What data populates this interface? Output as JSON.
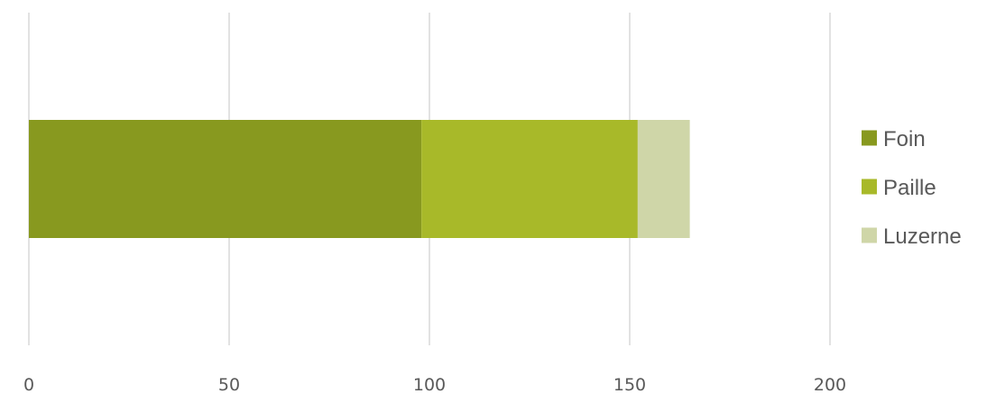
{
  "chart_data": {
    "type": "bar",
    "orientation": "horizontal",
    "stacked": true,
    "categories": [
      ""
    ],
    "series": [
      {
        "name": "Foin",
        "values": [
          98
        ],
        "color": "#88991f"
      },
      {
        "name": "Paille",
        "values": [
          54
        ],
        "color": "#a8b929"
      },
      {
        "name": "Luzerne",
        "values": [
          13
        ],
        "color": "#cfd6a8"
      }
    ],
    "xlim": [
      0,
      200
    ],
    "xticks": [
      "0",
      "50",
      "100",
      "150",
      "200"
    ],
    "grid": true,
    "legend": "right"
  }
}
